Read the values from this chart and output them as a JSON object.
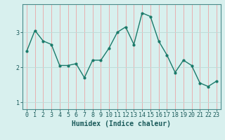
{
  "x": [
    0,
    1,
    2,
    3,
    4,
    5,
    6,
    7,
    8,
    9,
    10,
    11,
    12,
    13,
    14,
    15,
    16,
    17,
    18,
    19,
    20,
    21,
    22,
    23
  ],
  "y": [
    2.45,
    3.05,
    2.75,
    2.65,
    2.05,
    2.05,
    2.1,
    1.7,
    2.2,
    2.2,
    2.55,
    3.0,
    3.15,
    2.65,
    3.55,
    3.45,
    2.75,
    2.35,
    1.85,
    2.2,
    2.05,
    1.55,
    1.45,
    1.6
  ],
  "line_color": "#1a7a6a",
  "marker": "o",
  "marker_size": 2,
  "linewidth": 1.0,
  "bg_color": "#d8f0ee",
  "grid_color": "#c0dcd8",
  "grid_color_v": "#f0a0a0",
  "xlabel": "Humidex (Indice chaleur)",
  "xlabel_fontsize": 7,
  "yticks": [
    1,
    2,
    3
  ],
  "xticks": [
    0,
    1,
    2,
    3,
    4,
    5,
    6,
    7,
    8,
    9,
    10,
    11,
    12,
    13,
    14,
    15,
    16,
    17,
    18,
    19,
    20,
    21,
    22,
    23
  ],
  "xlim": [
    -0.5,
    23.5
  ],
  "ylim": [
    0.8,
    3.8
  ],
  "tick_fontsize": 6,
  "tick_color": "#1a5a5a",
  "spine_color": "#4a8a8a"
}
